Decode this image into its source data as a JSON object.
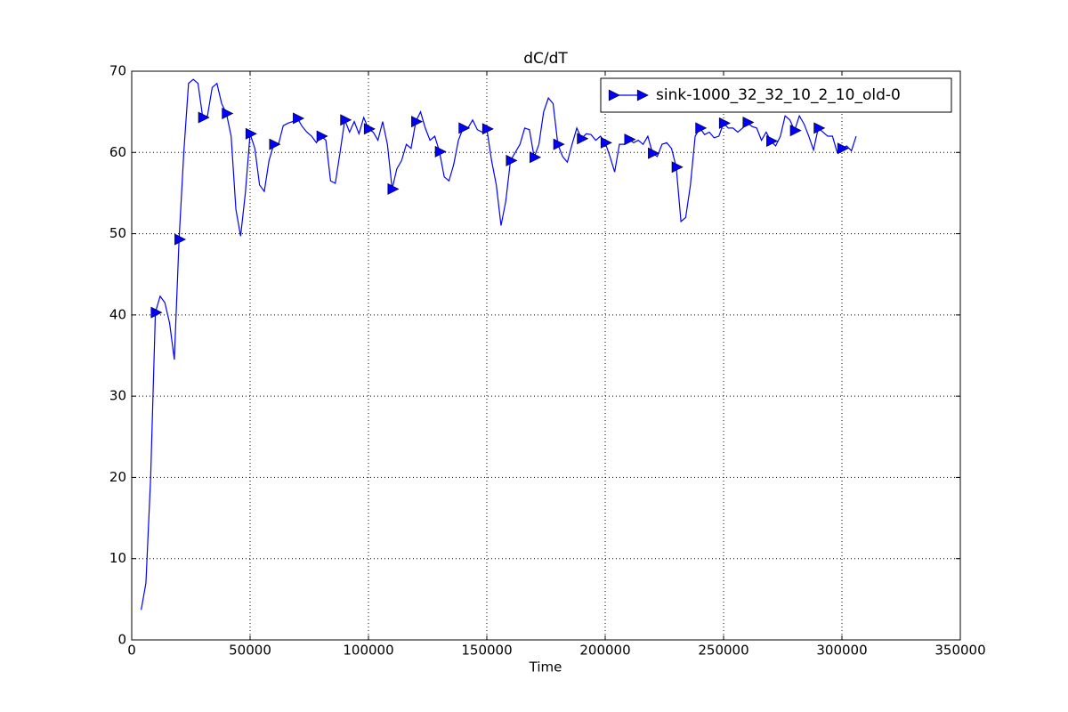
{
  "chart_data": {
    "type": "line",
    "title": "dC/dT",
    "xlabel": "Time",
    "x": [
      4000,
      6000,
      8000,
      10000,
      12000,
      14000,
      16000,
      18000,
      20000,
      22000,
      24000,
      26000,
      28000,
      30000,
      32000,
      34000,
      36000,
      38000,
      40000,
      42000,
      44000,
      46000,
      48000,
      50000,
      52000,
      54000,
      56000,
      58000,
      60000,
      62000,
      64000,
      66000,
      68000,
      70000,
      72000,
      74000,
      76000,
      78000,
      80000,
      82000,
      84000,
      86000,
      88000,
      90000,
      92000,
      94000,
      96000,
      98000,
      100000,
      102000,
      104000,
      106000,
      108000,
      110000,
      112000,
      114000,
      116000,
      118000,
      120000,
      122000,
      124000,
      126000,
      128000,
      130000,
      132000,
      134000,
      136000,
      138000,
      140000,
      142000,
      144000,
      146000,
      148000,
      150000,
      152000,
      154000,
      156000,
      158000,
      160000,
      162000,
      164000,
      166000,
      168000,
      170000,
      172000,
      174000,
      176000,
      178000,
      180000,
      182000,
      184000,
      186000,
      188000,
      190000,
      192000,
      194000,
      196000,
      198000,
      200000,
      202000,
      204000,
      206000,
      208000,
      210000,
      212000,
      214000,
      216000,
      218000,
      220000,
      222000,
      224000,
      226000,
      228000,
      230000,
      232000,
      234000,
      236000,
      238000,
      240000,
      242000,
      244000,
      246000,
      248000,
      250000,
      252000,
      254000,
      256000,
      258000,
      260000,
      262000,
      264000,
      266000,
      268000,
      270000,
      272000,
      274000,
      276000,
      278000,
      280000,
      282000,
      284000,
      286000,
      288000,
      290000,
      292000,
      294000,
      296000,
      298000,
      300000,
      302000,
      304000,
      306000
    ],
    "series": [
      {
        "name": "sink-1000_32_32_10_2_10_old-0",
        "color": "#0000ff",
        "marker": "triangle-right",
        "markevery": [
          3,
          5
        ],
        "values": [
          3.7,
          7,
          20,
          40.3,
          42.3,
          41.5,
          39,
          34.5,
          49.3,
          60,
          68.5,
          69,
          68.5,
          64.3,
          64.5,
          68,
          68.5,
          66,
          64.8,
          62,
          53,
          49.7,
          55,
          62.3,
          60.5,
          56,
          55.2,
          59,
          61,
          61,
          63.3,
          63.6,
          63.8,
          64.2,
          63.2,
          62.5,
          62,
          61.2,
          62,
          61.5,
          56.5,
          56.2,
          60,
          64,
          62.5,
          63.8,
          62.3,
          64.3,
          62.9,
          62.5,
          61.5,
          63.8,
          61,
          55.5,
          58,
          59,
          61,
          60.5,
          63.8,
          65,
          63,
          61.5,
          62,
          60.1,
          57,
          56.5,
          58.5,
          61.5,
          63,
          63,
          64,
          62.8,
          62.5,
          62.9,
          59,
          56,
          51,
          54,
          59,
          60,
          61,
          63,
          62.8,
          59.4,
          61,
          65,
          66.7,
          66,
          61,
          59.5,
          58.8,
          61,
          63,
          61.7,
          62.3,
          62.2,
          61.5,
          62,
          61.2,
          59.5,
          57.6,
          61,
          61,
          61.6,
          61.2,
          61.5,
          61,
          62,
          59.9,
          59.5,
          61,
          61.2,
          60.5,
          58.2,
          51.5,
          52,
          56,
          62,
          63,
          62.2,
          62.5,
          61.8,
          62,
          63.6,
          63,
          63,
          62.5,
          63,
          63.7,
          63.2,
          63,
          61.5,
          62.5,
          61.4,
          60.8,
          62,
          64.5,
          64,
          62.7,
          64.5,
          63.5,
          62,
          60.3,
          63,
          62.5,
          62,
          62,
          60,
          60.5,
          60.8,
          60.2,
          62
        ]
      }
    ],
    "xlim": [
      0,
      350000
    ],
    "xticks": [
      0,
      50000,
      100000,
      150000,
      200000,
      250000,
      300000,
      350000
    ],
    "ylim": [
      0,
      70
    ],
    "yticks": [
      0,
      10,
      20,
      30,
      40,
      50,
      60,
      70
    ],
    "grid": true,
    "legend": "upper right"
  }
}
